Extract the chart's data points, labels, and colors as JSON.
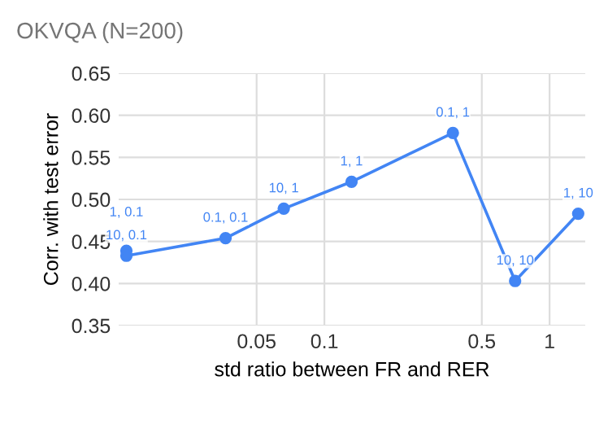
{
  "chart_data": {
    "type": "line",
    "title": "OKVQA (N=200)",
    "xlabel": "std ratio between FR and RER",
    "ylabel": "Corr. with test error",
    "x": [
      0.0132,
      0.0132,
      0.0364,
      0.066,
      0.132,
      0.372,
      0.703,
      1.34
    ],
    "series": [
      {
        "color": "#4285f4",
        "values": [
          0.439,
          0.433,
          0.454,
          0.489,
          0.521,
          0.579,
          0.403,
          0.483
        ]
      }
    ],
    "annotations": [
      {
        "text": "1, 0.1",
        "x": 0.0132,
        "y": 0.439
      },
      {
        "text": "10, 0.1",
        "x": 0.0132,
        "y": 0.433
      },
      {
        "text": "0.1, 0.1",
        "x": 0.0364,
        "y": 0.454
      },
      {
        "text": "10, 1",
        "x": 0.066,
        "y": 0.489
      },
      {
        "text": "1, 1",
        "x": 0.132,
        "y": 0.521
      },
      {
        "text": "0.1, 1",
        "x": 0.372,
        "y": 0.579
      },
      {
        "text": "10, 10",
        "x": 0.703,
        "y": 0.403
      },
      {
        "text": "1, 10",
        "x": 1.34,
        "y": 0.483
      }
    ],
    "log": "x",
    "xlim": [
      0.0122,
      1.44
    ],
    "xticks": [
      0.05,
      0.1,
      0.5,
      1
    ],
    "ylim": [
      0.35,
      0.65
    ],
    "yticks": [
      0.35,
      {
        "value": 0.4,
        "label": "0.40"
      },
      0.45,
      {
        "value": 0.5,
        "label": "0.50"
      },
      0.55,
      {
        "value": 0.6,
        "label": "0.60"
      },
      0.65
    ],
    "grid": true,
    "marker": "circle",
    "line_style": "solid"
  }
}
